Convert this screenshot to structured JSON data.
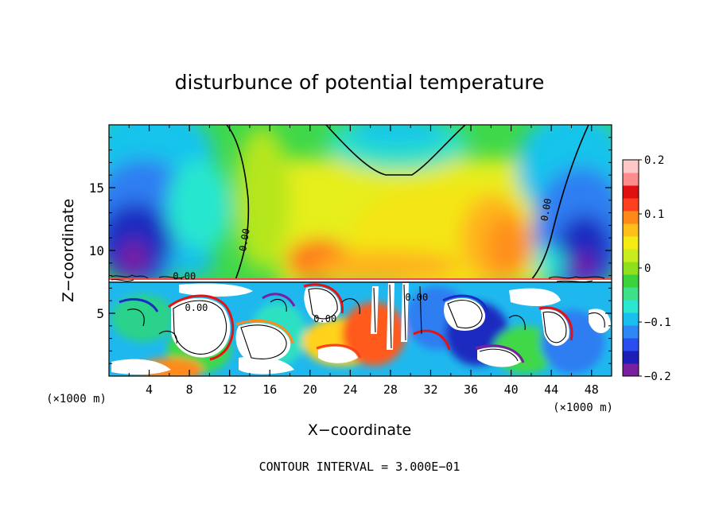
{
  "chart_data": {
    "type": "heatmap",
    "title": "disturbunce of potential temperature",
    "xlabel": "X−coordinate",
    "ylabel": "Z−coordinate",
    "x_unit": "(×1000 m)",
    "z_unit": "(×1000 m)",
    "footer": "CONTOUR INTERVAL = 3.000E−01",
    "xlim": [
      0,
      50
    ],
    "ylim": [
      0,
      20
    ],
    "x_ticks": [
      4,
      8,
      12,
      16,
      20,
      24,
      28,
      32,
      36,
      40,
      44,
      48
    ],
    "y_ticks": [
      5,
      10,
      15
    ],
    "colorbar": {
      "range": [
        -0.2,
        0.2
      ],
      "ticks": [
        0.2,
        0.1,
        0,
        -0.1,
        -0.2
      ],
      "tick_labels": [
        "0.2",
        "0.1",
        "0",
        "−0.1",
        "−0.2"
      ],
      "colors": [
        "#7a1fa0",
        "#1d1db8",
        "#2a4df0",
        "#2f86f5",
        "#19c0ee",
        "#2be6d0",
        "#3fe08a",
        "#3cd23c",
        "#8ee01c",
        "#c8ec1e",
        "#f4ea14",
        "#ffbf1a",
        "#ff8a1a",
        "#ff4020",
        "#e01010",
        "#ff8c8c",
        "#ffc8c8"
      ]
    },
    "contour_labels": [
      {
        "text": "0.00",
        "x": 13.8,
        "z": 10.8
      },
      {
        "text": "0.00",
        "x": 43.8,
        "z": 13.2
      },
      {
        "text": "0.00",
        "x": 7.5,
        "z": 7.7
      },
      {
        "text": "0.00",
        "x": 8.7,
        "z": 5.2
      },
      {
        "text": "0.00",
        "x": 21.5,
        "z": 4.3
      },
      {
        "text": "0.00",
        "x": 30.6,
        "z": 6.0
      }
    ],
    "series": []
  }
}
